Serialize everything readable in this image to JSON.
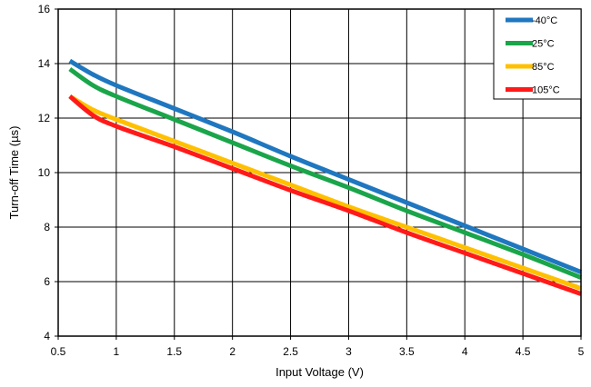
{
  "chart_data": {
    "type": "line",
    "title": "",
    "xlabel": "Input Voltage (V)",
    "ylabel": "Turn-off Time (µs)",
    "xlim": [
      0.5,
      5
    ],
    "ylim": [
      4,
      16
    ],
    "xticks": [
      0.5,
      1,
      1.5,
      2,
      2.5,
      3,
      3.5,
      4,
      4.5,
      5
    ],
    "xtick_labels": [
      "0.5",
      "1",
      "1.5",
      "2",
      "2.5",
      "3",
      "3.5",
      "4",
      "4.5",
      "5"
    ],
    "yticks": [
      4,
      6,
      8,
      10,
      12,
      14,
      16
    ],
    "ytick_labels": [
      "4",
      "6",
      "8",
      "10",
      "12",
      "14",
      "16"
    ],
    "grid": true,
    "legend_position": "top-right",
    "series": [
      {
        "name": "-40°C",
        "color": "#1f77c0",
        "x": [
          0.6,
          0.8,
          1.0,
          1.5,
          2.0,
          2.5,
          3.0,
          3.5,
          4.0,
          4.5,
          5.0
        ],
        "y": [
          14.1,
          13.6,
          13.2,
          12.35,
          11.5,
          10.6,
          9.75,
          8.9,
          8.05,
          7.2,
          6.35
        ]
      },
      {
        "name": "25°C",
        "color": "#1aa54a",
        "x": [
          0.6,
          0.8,
          1.0,
          1.5,
          2.0,
          2.5,
          3.0,
          3.5,
          4.0,
          4.5,
          5.0
        ],
        "y": [
          13.8,
          13.2,
          12.8,
          11.95,
          11.1,
          10.25,
          9.45,
          8.6,
          7.8,
          7.0,
          6.15
        ]
      },
      {
        "name": "85°C",
        "color": "#ffc000",
        "x": [
          0.6,
          0.8,
          1.0,
          1.5,
          2.0,
          2.5,
          3.0,
          3.5,
          4.0,
          4.5,
          5.0
        ],
        "y": [
          12.8,
          12.3,
          11.95,
          11.15,
          10.35,
          9.55,
          8.75,
          8.0,
          7.25,
          6.5,
          5.75
        ]
      },
      {
        "name": "105°C",
        "color": "#ff1a1a",
        "x": [
          0.6,
          0.8,
          1.0,
          1.5,
          2.0,
          2.5,
          3.0,
          3.5,
          4.0,
          4.5,
          5.0
        ],
        "y": [
          12.8,
          12.1,
          11.7,
          10.95,
          10.15,
          9.35,
          8.6,
          7.8,
          7.05,
          6.3,
          5.55
        ]
      }
    ]
  }
}
